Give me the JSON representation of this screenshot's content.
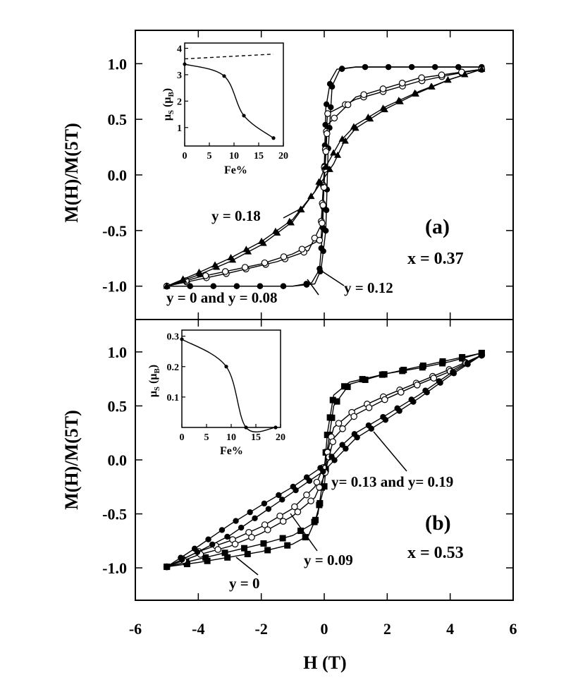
{
  "chart_data": [
    {
      "id": "a",
      "type": "line",
      "panel_label": "(a)",
      "param_text": "x  =  0.37",
      "ylabel": "M(H)/M(5T)",
      "xlim": [
        -6,
        6
      ],
      "ylim": [
        -1.3,
        1.3
      ],
      "yticks": [
        {
          "v": 1.0,
          "label": "1.0"
        },
        {
          "v": 0.5,
          "label": "0.5"
        },
        {
          "v": 0.0,
          "label": "0.0"
        },
        {
          "v": -0.5,
          "label": "-0.5"
        },
        {
          "v": -1.0,
          "label": "-1.0"
        }
      ],
      "series": [
        {
          "name": "y = 0 and y = 0.08",
          "marker": "filled-circle",
          "upper": [
            [
              -5,
              -1.0
            ],
            [
              -3,
              -1.0
            ],
            [
              -1,
              -1.0
            ],
            [
              -0.4,
              -0.97
            ],
            [
              -0.15,
              -0.85
            ],
            [
              -0.05,
              -0.5
            ],
            [
              0.05,
              0.6
            ],
            [
              0.2,
              0.85
            ],
            [
              0.4,
              0.95
            ],
            [
              1,
              0.97
            ],
            [
              3,
              0.97
            ],
            [
              5,
              0.97
            ]
          ],
          "lower": [
            [
              -5,
              -1.0
            ],
            [
              -3,
              -1.0
            ],
            [
              -1,
              -1.0
            ],
            [
              -0.3,
              -0.98
            ],
            [
              -0.1,
              -0.85
            ],
            [
              0.05,
              -0.5
            ],
            [
              0.12,
              0.2
            ],
            [
              0.25,
              0.8
            ],
            [
              0.5,
              0.95
            ],
            [
              1,
              0.97
            ],
            [
              3,
              0.97
            ],
            [
              5,
              0.97
            ]
          ]
        },
        {
          "name": "y = 0.12",
          "marker": "open-circle",
          "upper": [
            [
              -5,
              -1.0
            ],
            [
              -3,
              -0.88
            ],
            [
              -1.5,
              -0.78
            ],
            [
              -0.5,
              -0.68
            ],
            [
              -0.1,
              -0.45
            ],
            [
              0.1,
              0.55
            ],
            [
              1,
              0.68
            ],
            [
              2,
              0.76
            ],
            [
              3,
              0.84
            ],
            [
              4,
              0.9
            ],
            [
              5,
              0.95
            ]
          ],
          "lower": [
            [
              -5,
              -1.0
            ],
            [
              -4,
              -0.92
            ],
            [
              -3,
              -0.86
            ],
            [
              -2,
              -0.8
            ],
            [
              -1,
              -0.71
            ],
            [
              -0.1,
              -0.58
            ],
            [
              0.1,
              0.45
            ],
            [
              1,
              0.7
            ],
            [
              3,
              0.87
            ],
            [
              5,
              0.95
            ]
          ]
        },
        {
          "name": "y = 0.18",
          "marker": "filled-triangle",
          "upper": [
            [
              -5,
              -1.0
            ],
            [
              -4,
              -0.9
            ],
            [
              -3,
              -0.78
            ],
            [
              -2,
              -0.63
            ],
            [
              -1,
              -0.42
            ],
            [
              -0.3,
              -0.15
            ],
            [
              0,
              0.05
            ],
            [
              0.5,
              0.3
            ],
            [
              1,
              0.45
            ],
            [
              2,
              0.62
            ],
            [
              3,
              0.75
            ],
            [
              4,
              0.86
            ],
            [
              5,
              0.95
            ]
          ],
          "lower": [
            [
              -5,
              -1.0
            ],
            [
              -4,
              -0.88
            ],
            [
              -3,
              -0.75
            ],
            [
              -2,
              -0.6
            ],
            [
              -1,
              -0.4
            ],
            [
              -0.3,
              -0.15
            ],
            [
              0.3,
              0.1
            ],
            [
              0.6,
              0.28
            ],
            [
              1,
              0.42
            ],
            [
              2,
              0.6
            ],
            [
              3,
              0.74
            ],
            [
              4,
              0.86
            ],
            [
              5,
              0.95
            ]
          ]
        }
      ],
      "annotations": [
        {
          "text": "y  =  0.18"
        },
        {
          "text": "y  =  0  and  y  =  0.08"
        },
        {
          "text": "y  =  0.12"
        }
      ],
      "inset": {
        "xlabel": "Fe%",
        "ylabel_main": "μ",
        "ylabel_sub": "S",
        "ylabel_unit": "(μ",
        "ylabel_unit_sub": "B",
        "ylabel_close": ")",
        "xlim": [
          0,
          20
        ],
        "ylim": [
          0.3,
          4.2
        ],
        "xticks": [
          {
            "v": 0,
            "label": "0"
          },
          {
            "v": 5,
            "label": "5"
          },
          {
            "v": 10,
            "label": "10"
          },
          {
            "v": 15,
            "label": "15"
          },
          {
            "v": 20,
            "label": "20"
          }
        ],
        "yticks": [
          {
            "v": 4,
            "label": "4"
          },
          {
            "v": 3,
            "label": "3"
          },
          {
            "v": 2,
            "label": "2"
          },
          {
            "v": 1,
            "label": "1"
          }
        ],
        "points": [
          [
            0,
            3.4
          ],
          [
            8,
            2.95
          ],
          [
            12,
            1.45
          ],
          [
            18,
            0.6
          ]
        ],
        "dashed": [
          [
            0,
            3.6
          ],
          [
            18,
            3.78
          ]
        ]
      }
    },
    {
      "id": "b",
      "type": "line",
      "panel_label": "(b)",
      "param_text": "x  =  0.53",
      "ylabel": "M(H)/M(5T)",
      "xlabel": "H  (T)",
      "xlim": [
        -6,
        6
      ],
      "ylim": [
        -1.3,
        1.3
      ],
      "xticks": [
        {
          "v": -6,
          "label": "-6"
        },
        {
          "v": -4,
          "label": "-4"
        },
        {
          "v": -2,
          "label": "-2"
        },
        {
          "v": 0,
          "label": "0"
        },
        {
          "v": 2,
          "label": "2"
        },
        {
          "v": 4,
          "label": "4"
        },
        {
          "v": 6,
          "label": "6"
        }
      ],
      "yticks": [
        {
          "v": 1.0,
          "label": "1.0"
        },
        {
          "v": 0.5,
          "label": "0.5"
        },
        {
          "v": 0.0,
          "label": "0.0"
        },
        {
          "v": -0.5,
          "label": "-0.5"
        },
        {
          "v": -1.0,
          "label": "-1.0"
        }
      ],
      "series": [
        {
          "name": "y = 0",
          "marker": "filled-square",
          "upper": [
            [
              -5,
              -0.99
            ],
            [
              -4,
              -0.95
            ],
            [
              -3,
              -0.9
            ],
            [
              -2,
              -0.85
            ],
            [
              -1,
              -0.78
            ],
            [
              -0.5,
              -0.7
            ],
            [
              -0.2,
              -0.5
            ],
            [
              0,
              -0.1
            ],
            [
              0.1,
              0.25
            ],
            [
              0.3,
              0.6
            ],
            [
              0.8,
              0.72
            ],
            [
              2,
              0.8
            ],
            [
              3,
              0.85
            ],
            [
              4,
              0.91
            ],
            [
              5,
              0.99
            ]
          ],
          "lower": [
            [
              -5,
              -0.99
            ],
            [
              -4,
              -0.92
            ],
            [
              -3,
              -0.85
            ],
            [
              -2,
              -0.78
            ],
            [
              -1,
              -0.7
            ],
            [
              -0.3,
              -0.58
            ],
            [
              0,
              -0.25
            ],
            [
              0.1,
              0.1
            ],
            [
              0.3,
              0.5
            ],
            [
              0.8,
              0.7
            ],
            [
              2,
              0.8
            ],
            [
              5,
              0.99
            ]
          ]
        },
        {
          "name": "y = 0.09",
          "marker": "open-circle",
          "upper": [
            [
              -5,
              -0.99
            ],
            [
              -4,
              -0.85
            ],
            [
              -3,
              -0.75
            ],
            [
              -2,
              -0.62
            ],
            [
              -1,
              -0.45
            ],
            [
              -0.3,
              -0.25
            ],
            [
              0,
              -0.05
            ],
            [
              0.3,
              0.3
            ],
            [
              1,
              0.47
            ],
            [
              2,
              0.6
            ],
            [
              3,
              0.72
            ],
            [
              4,
              0.84
            ],
            [
              5,
              0.97
            ]
          ],
          "lower": [
            [
              -5,
              -0.99
            ],
            [
              -4,
              -0.88
            ],
            [
              -3,
              -0.8
            ],
            [
              -2,
              -0.68
            ],
            [
              -1,
              -0.52
            ],
            [
              -0.3,
              -0.35
            ],
            [
              0,
              -0.15
            ],
            [
              0.3,
              0.2
            ],
            [
              1,
              0.42
            ],
            [
              2,
              0.57
            ],
            [
              3,
              0.7
            ],
            [
              4,
              0.82
            ],
            [
              5,
              0.97
            ]
          ]
        },
        {
          "name": "y = 0.13 and y = 0.19",
          "marker": "filled-circle",
          "upper": [
            [
              -5,
              -0.99
            ],
            [
              -4,
              -0.8
            ],
            [
              -3,
              -0.6
            ],
            [
              -2,
              -0.42
            ],
            [
              -1,
              -0.25
            ],
            [
              0,
              -0.05
            ],
            [
              0.5,
              0.12
            ],
            [
              1,
              0.25
            ],
            [
              2,
              0.42
            ],
            [
              3,
              0.6
            ],
            [
              4,
              0.8
            ],
            [
              5,
              0.97
            ]
          ],
          "lower": [
            [
              -5,
              -0.99
            ],
            [
              -4,
              -0.85
            ],
            [
              -3,
              -0.7
            ],
            [
              -2,
              -0.5
            ],
            [
              -1,
              -0.3
            ],
            [
              0,
              -0.1
            ],
            [
              0.5,
              0.05
            ],
            [
              1,
              0.2
            ],
            [
              2,
              0.38
            ],
            [
              3,
              0.57
            ],
            [
              4,
              0.78
            ],
            [
              5,
              0.97
            ]
          ]
        }
      ],
      "annotations": [
        {
          "text": "y=  0.13  and  y=  0.19"
        },
        {
          "text": "y  =  0.09"
        },
        {
          "text": "y  =  0"
        }
      ],
      "inset": {
        "xlabel": "Fe%",
        "ylabel_main": "μ",
        "ylabel_sub": "S",
        "ylabel_unit": "(μ",
        "ylabel_unit_sub": "B",
        "ylabel_close": ")",
        "xlim": [
          0,
          20
        ],
        "ylim": [
          0,
          0.32
        ],
        "xticks": [
          {
            "v": 0,
            "label": "0"
          },
          {
            "v": 5,
            "label": "5"
          },
          {
            "v": 10,
            "label": "10"
          },
          {
            "v": 15,
            "label": "15"
          },
          {
            "v": 20,
            "label": "20"
          }
        ],
        "yticks": [
          {
            "v": 0.3,
            "label": "0.3"
          },
          {
            "v": 0.2,
            "label": "0.2"
          },
          {
            "v": 0.1,
            "label": "0.1"
          }
        ],
        "points": [
          [
            0,
            0.29
          ],
          [
            9,
            0.2
          ],
          [
            13,
            0.0
          ],
          [
            19,
            0.0
          ]
        ],
        "dashed": []
      }
    }
  ]
}
